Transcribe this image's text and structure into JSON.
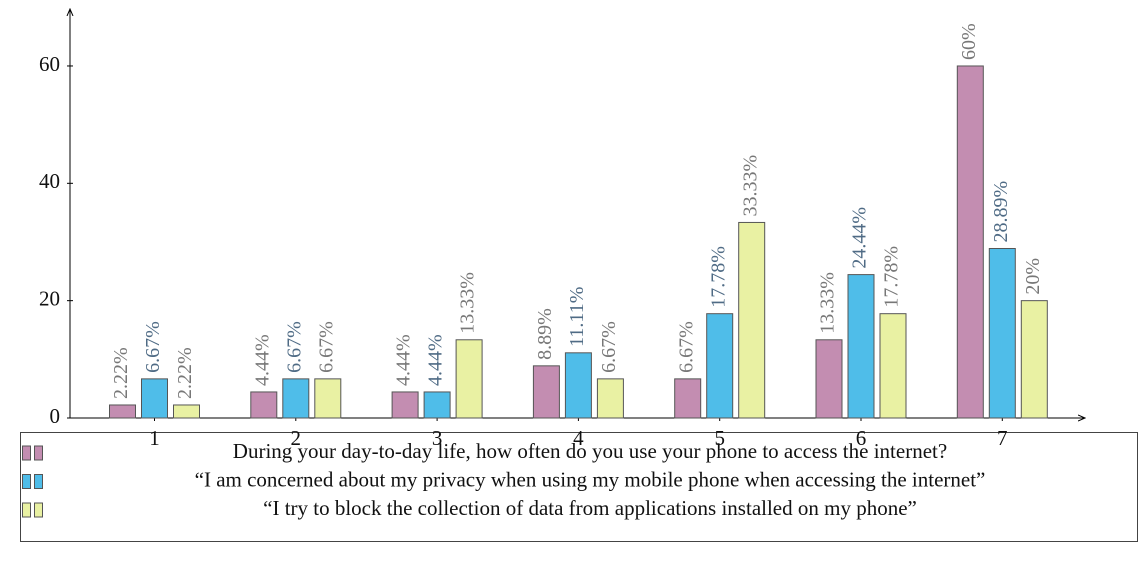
{
  "chart_data": {
    "type": "bar",
    "categories": [
      "1",
      "2",
      "3",
      "4",
      "5",
      "6",
      "7"
    ],
    "series": [
      {
        "name": "During your day-to-day life, how often do you use your phone to access the internet?",
        "color": "#c38db1",
        "label_color": "#777777",
        "values": [
          2.22,
          4.44,
          4.44,
          8.89,
          6.67,
          13.33,
          60
        ],
        "value_labels": [
          "2.22%",
          "4.44%",
          "4.44%",
          "8.89%",
          "6.67%",
          "13.33%",
          "60%"
        ]
      },
      {
        "name": "“I am concerned about my privacy when using my mobile phone when accessing the internet”",
        "color": "#4fbde9",
        "label_color": "#4f6b85",
        "values": [
          6.67,
          6.67,
          4.44,
          11.11,
          17.78,
          24.44,
          28.89
        ],
        "value_labels": [
          "6.67%",
          "6.67%",
          "4.44%",
          "11.11%",
          "17.78%",
          "24.44%",
          "28.89%"
        ]
      },
      {
        "name": "“I try to block the collection of data from applications installed on my phone”",
        "color": "#e9f1a3",
        "label_color": "#777777",
        "values": [
          2.22,
          6.67,
          13.33,
          6.67,
          33.33,
          17.78,
          20
        ],
        "value_labels": [
          "2.22%",
          "6.67%",
          "13.33%",
          "6.67%",
          "33.33%",
          "17.78%",
          "20%"
        ]
      }
    ],
    "ylim": [
      0,
      70
    ],
    "yticks": [
      0,
      20,
      40,
      60
    ],
    "grid": false,
    "legend": "bottom"
  }
}
